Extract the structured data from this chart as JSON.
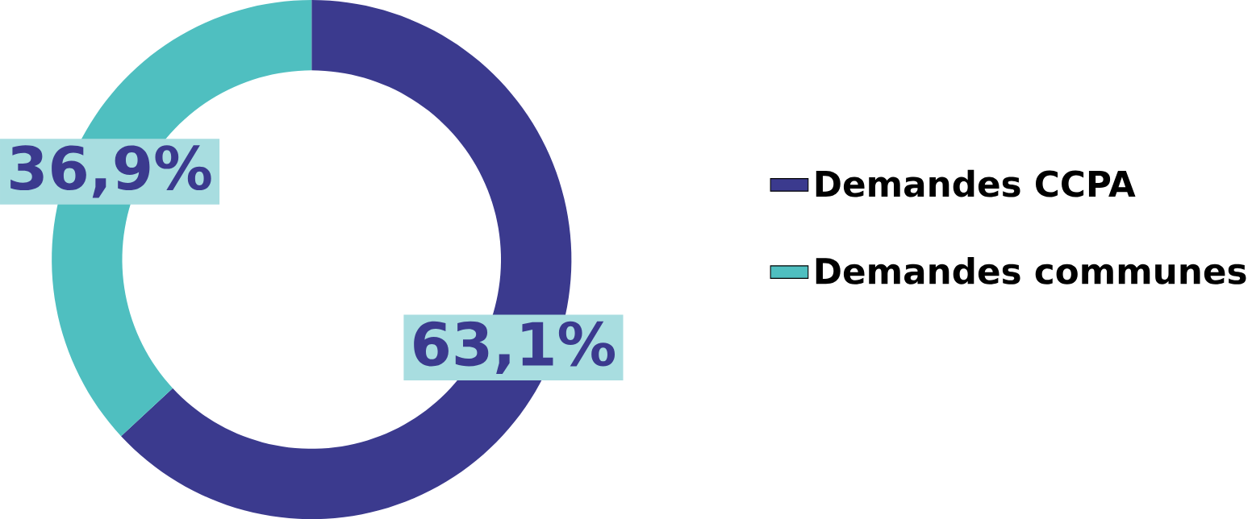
{
  "chart_data": {
    "type": "donut",
    "categories": [
      "Demandes CCPA",
      "Demandes communes"
    ],
    "values": [
      63.1,
      36.9
    ],
    "colors": [
      "#3b3a8e",
      "#4fbfc0"
    ],
    "value_labels": [
      "63,1%",
      "36,9%"
    ],
    "legend": "right"
  }
}
